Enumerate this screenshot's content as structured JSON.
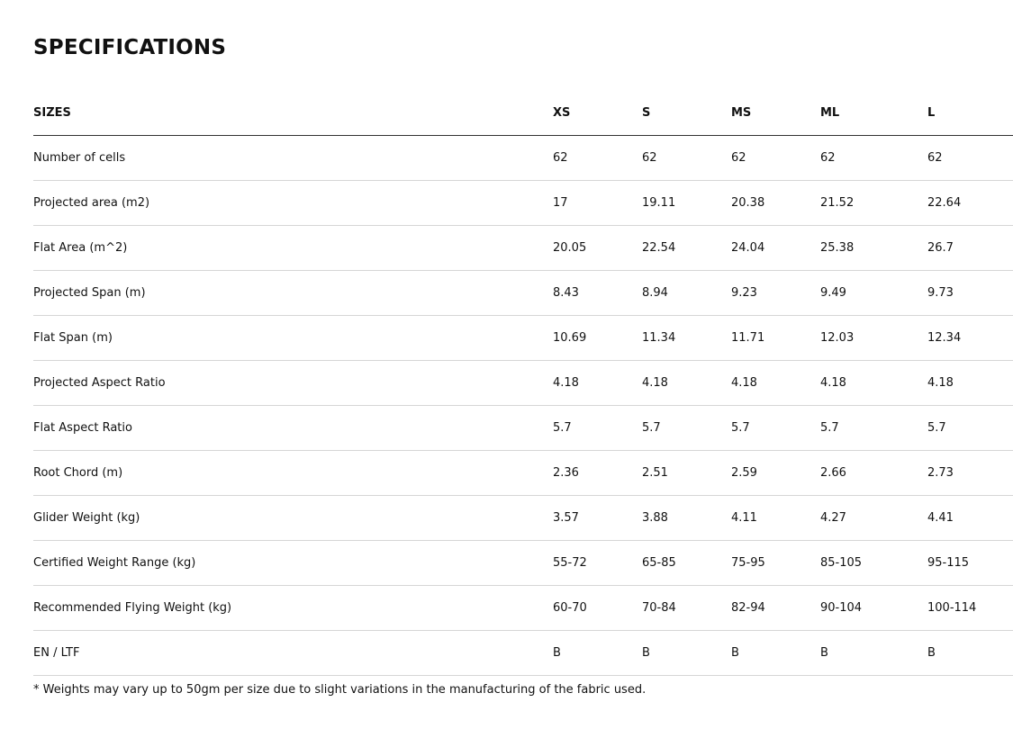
{
  "title": "SPECIFICATIONS",
  "table": {
    "headers": [
      "SIZES",
      "XS",
      "S",
      "MS",
      "ML",
      "L"
    ],
    "rows": [
      [
        "Number of cells",
        "62",
        "62",
        "62",
        "62",
        "62"
      ],
      [
        "Projected area (m2)",
        "17",
        "19.11",
        "20.38",
        "21.52",
        "22.64"
      ],
      [
        "Flat Area (m^2)",
        "20.05",
        "22.54",
        "24.04",
        "25.38",
        "26.7"
      ],
      [
        "Projected Span (m)",
        "8.43",
        "8.94",
        "9.23",
        "9.49",
        "9.73"
      ],
      [
        "Flat Span (m)",
        "10.69",
        "11.34",
        "11.71",
        "12.03",
        "12.34"
      ],
      [
        "Projected Aspect Ratio",
        "4.18",
        "4.18",
        "4.18",
        "4.18",
        "4.18"
      ],
      [
        "Flat Aspect Ratio",
        "5.7",
        "5.7",
        "5.7",
        "5.7",
        "5.7"
      ],
      [
        "Root Chord (m)",
        "2.36",
        "2.51",
        "2.59",
        "2.66",
        "2.73"
      ],
      [
        "Glider Weight (kg)",
        "3.57",
        "3.88",
        "4.11",
        "4.27",
        "4.41"
      ],
      [
        "Certified Weight Range (kg)",
        "55-72",
        "65-85",
        "75-95",
        "85-105",
        "95-115"
      ],
      [
        "Recommended Flying Weight (kg)",
        "60-70",
        "70-84",
        "82-94",
        "90-104",
        "100-114"
      ],
      [
        "EN / LTF",
        "B",
        "B",
        "B",
        "B",
        "B"
      ]
    ]
  },
  "footnote": "* Weights may vary up to 50gm per size due to slight variations in the manufacturing of the fabric used."
}
